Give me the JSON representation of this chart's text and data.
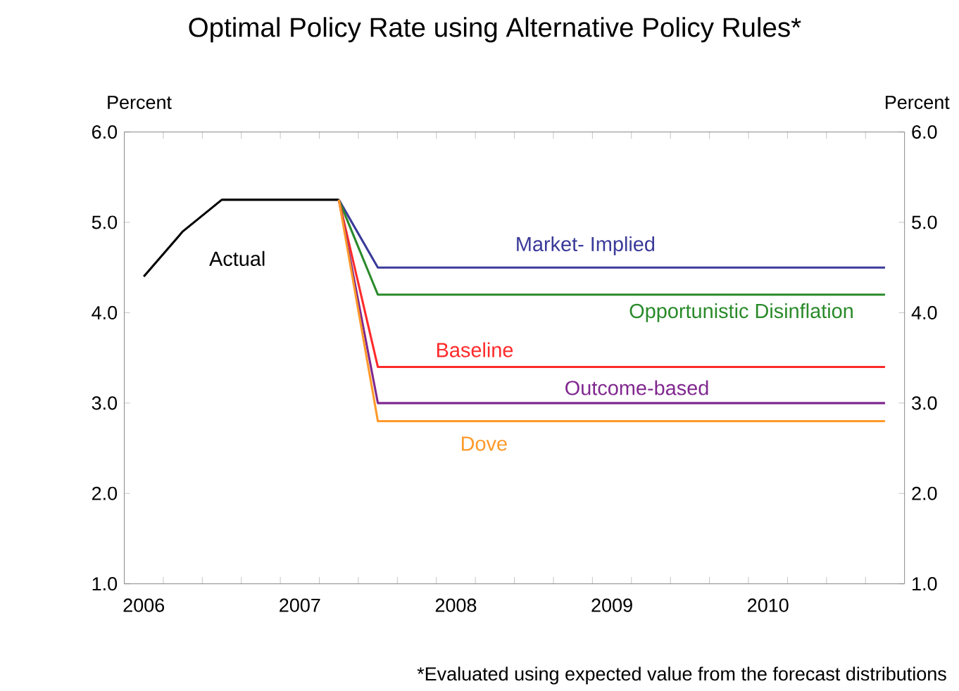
{
  "chart_data": {
    "type": "line",
    "title": "Optimal Policy Rate using Alternative Policy Rules*",
    "ylabel": "Percent",
    "y2label": "Percent",
    "xlim": [
      2005.875,
      2010.875
    ],
    "xticks": [
      {
        "value": 2006,
        "label": "2006"
      },
      {
        "value": 2007,
        "label": "2007"
      },
      {
        "value": 2008,
        "label": "2008"
      },
      {
        "value": 2009,
        "label": "2009"
      },
      {
        "value": 2010,
        "label": "2010"
      },
      {
        "value": 2006.125,
        "label": null
      },
      {
        "value": 2006.375,
        "label": null
      },
      {
        "value": 2006.625,
        "label": null
      },
      {
        "value": 2006.875,
        "label": null
      },
      {
        "value": 2007.125,
        "label": null
      },
      {
        "value": 2007.375,
        "label": null
      },
      {
        "value": 2007.625,
        "label": null
      },
      {
        "value": 2007.875,
        "label": null
      },
      {
        "value": 2008.125,
        "label": null
      },
      {
        "value": 2008.375,
        "label": null
      },
      {
        "value": 2008.625,
        "label": null
      },
      {
        "value": 2008.875,
        "label": null
      },
      {
        "value": 2009.125,
        "label": null
      },
      {
        "value": 2009.375,
        "label": null
      },
      {
        "value": 2009.625,
        "label": null
      },
      {
        "value": 2009.875,
        "label": null
      },
      {
        "value": 2010.125,
        "label": null
      },
      {
        "value": 2010.375,
        "label": null
      },
      {
        "value": 2010.625,
        "label": null
      }
    ],
    "ylim": [
      1,
      6
    ],
    "yticks": [
      {
        "value": 1,
        "label": "1.0"
      },
      {
        "value": 2,
        "label": "2.0"
      },
      {
        "value": 3,
        "label": "3.0"
      },
      {
        "value": 4,
        "label": "4.0"
      },
      {
        "value": 5,
        "label": "5.0"
      },
      {
        "value": 6,
        "label": "6.0"
      }
    ],
    "y2lim": [
      1,
      6
    ],
    "y2ticks": [
      {
        "value": 1,
        "label": "1.0"
      },
      {
        "value": 2,
        "label": "2.0"
      },
      {
        "value": 3,
        "label": "3.0"
      },
      {
        "value": 4,
        "label": "4.0"
      },
      {
        "value": 5,
        "label": "5.0"
      },
      {
        "value": 6,
        "label": "6.0"
      }
    ],
    "marker": "none",
    "line_style": "solid",
    "grid": false,
    "series": [
      {
        "name": "Actual",
        "color": "#000000",
        "x": [
          2006,
          2006.25,
          2006.5,
          2006.75,
          2007,
          2007.25
        ],
        "values": [
          4.4,
          4.9,
          5.25,
          5.25,
          5.25,
          5.25
        ]
      },
      {
        "name": "Market- Implied",
        "color": "#3a3a9a",
        "x": [
          2007.25,
          2007.5,
          2010.75
        ],
        "values": [
          5.25,
          4.5,
          4.5
        ]
      },
      {
        "name": "Opportunistic Disinflation",
        "color": "#2a8a2a",
        "x": [
          2007.25,
          2007.5,
          2010.75
        ],
        "values": [
          5.25,
          4.2,
          4.2
        ]
      },
      {
        "name": "Baseline",
        "color": "#ff2a2a",
        "x": [
          2007.25,
          2007.5,
          2010.75
        ],
        "values": [
          5.25,
          3.4,
          3.4
        ]
      },
      {
        "name": "Outcome-based",
        "color": "#80288f",
        "x": [
          2007.25,
          2007.5,
          2010.75
        ],
        "values": [
          5.25,
          3.0,
          3.0
        ]
      },
      {
        "name": "Dove",
        "color": "#ff9a2a",
        "x": [
          2007.25,
          2007.5,
          2010.75
        ],
        "values": [
          5.25,
          2.8,
          2.8
        ]
      }
    ],
    "annotations": [
      "*Evaluated using expected value from the forecast distributions"
    ]
  }
}
